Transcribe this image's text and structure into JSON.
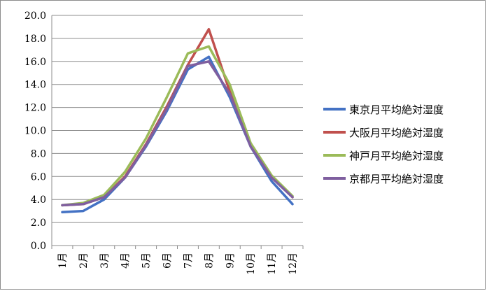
{
  "chart_data": {
    "type": "line",
    "title": "",
    "xlabel": "",
    "ylabel": "",
    "categories": [
      "1月",
      "2月",
      "3月",
      "4月",
      "5月",
      "6月",
      "7月",
      "8月",
      "9月",
      "10月",
      "11月",
      "12月"
    ],
    "y_ticks": [
      "0.0",
      "2.0",
      "4.0",
      "6.0",
      "8.0",
      "10.0",
      "12.0",
      "14.0",
      "16.0",
      "18.0",
      "20.0"
    ],
    "ylim": [
      0,
      20
    ],
    "grid": true,
    "legend_position": "right",
    "series": [
      {
        "name": "東京月平均絶対湿度",
        "color": "#4472c4",
        "values": [
          2.9,
          3.0,
          4.0,
          5.9,
          8.6,
          11.7,
          15.3,
          16.4,
          12.9,
          8.6,
          5.6,
          3.6
        ]
      },
      {
        "name": "大阪月平均絶対湿度",
        "color": "#c0504d",
        "values": [
          3.5,
          3.6,
          4.2,
          6.0,
          8.8,
          12.1,
          15.7,
          18.8,
          13.4,
          8.7,
          6.0,
          4.2
        ]
      },
      {
        "name": "神戸月平均絶対湿度",
        "color": "#9bbb59",
        "values": [
          3.5,
          3.7,
          4.4,
          6.4,
          9.3,
          12.9,
          16.7,
          17.3,
          14.0,
          8.9,
          6.1,
          4.3
        ]
      },
      {
        "name": "京都月平均絶対湿度",
        "color": "#7f5f9f",
        "values": [
          3.5,
          3.6,
          4.2,
          5.9,
          8.7,
          11.9,
          15.6,
          16.0,
          13.2,
          8.6,
          5.9,
          4.2
        ]
      }
    ]
  }
}
